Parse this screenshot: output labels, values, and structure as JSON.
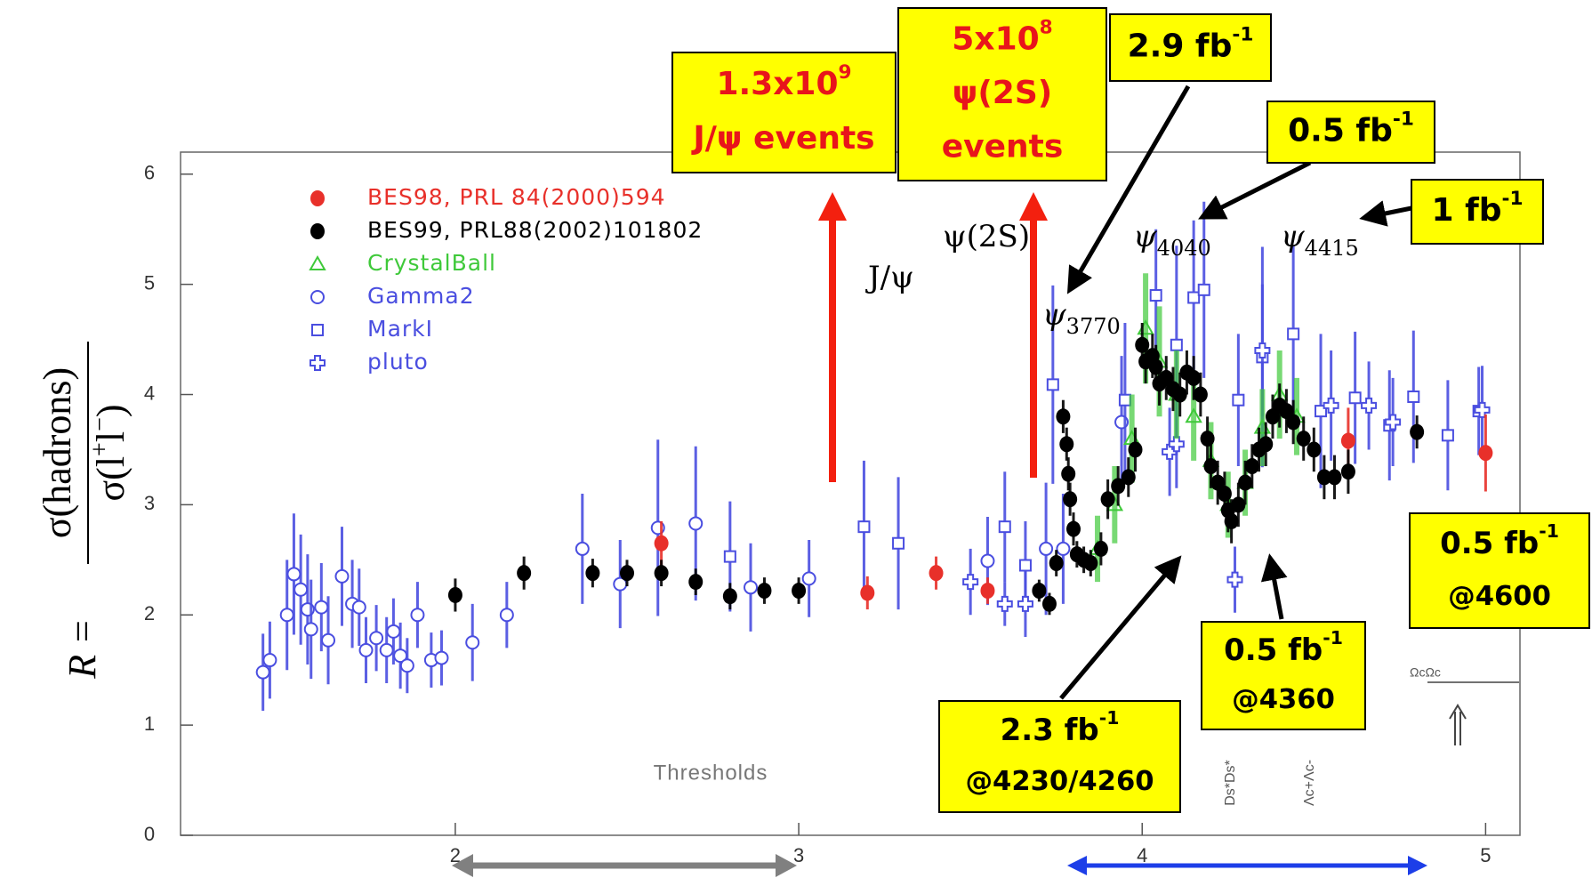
{
  "chart_data": {
    "type": "scatter",
    "xlim": [
      1.2,
      5.1
    ],
    "ylim": [
      0,
      6.2
    ],
    "xticks": [
      2,
      3,
      4,
      5
    ],
    "yticks": [
      0,
      1,
      2,
      3,
      4,
      5,
      6
    ],
    "y_label": {
      "left": "R =",
      "numerator": "σ(hadrons)",
      "denominator": "σ(l",
      "den_sup": "+",
      "den_mid": "l",
      "den_sup2": "−",
      "den_end": ")"
    },
    "series": [
      {
        "name": "BES98, PRL 84(2000)594",
        "color": "#e8302a",
        "marker": "dot",
        "x": [
          2.6,
          3.2,
          3.4,
          3.55,
          4.6,
          5.0
        ],
        "values": [
          2.65,
          2.2,
          2.38,
          2.22,
          3.58,
          3.47
        ],
        "errors": [
          0.2,
          0.15,
          0.15,
          0.12,
          0.3,
          0.35
        ]
      },
      {
        "name": "BES99, PRL88(2002)101802",
        "color": "#000000",
        "marker": "dot",
        "x": [
          2.0,
          2.2,
          2.4,
          2.5,
          2.6,
          2.7,
          2.8,
          2.9,
          3.0,
          3.7,
          3.73,
          3.75,
          3.77,
          3.78,
          3.785,
          3.79,
          3.8,
          3.81,
          3.83,
          3.85,
          3.88,
          3.9,
          3.93,
          3.96,
          3.98,
          4.0,
          4.01,
          4.03,
          4.04,
          4.05,
          4.07,
          4.09,
          4.11,
          4.13,
          4.15,
          4.17,
          4.19,
          4.2,
          4.22,
          4.24,
          4.25,
          4.26,
          4.28,
          4.3,
          4.32,
          4.34,
          4.36,
          4.38,
          4.4,
          4.42,
          4.44,
          4.47,
          4.5,
          4.53,
          4.56,
          4.6,
          4.8
        ],
        "values": [
          2.18,
          2.38,
          2.38,
          2.38,
          2.38,
          2.3,
          2.17,
          2.22,
          2.22,
          2.22,
          2.1,
          2.47,
          3.8,
          3.55,
          3.28,
          3.05,
          2.78,
          2.55,
          2.5,
          2.47,
          2.6,
          3.05,
          3.17,
          3.25,
          3.5,
          4.45,
          4.3,
          4.35,
          4.25,
          4.1,
          4.15,
          4.05,
          4.0,
          4.2,
          4.15,
          4.0,
          3.6,
          3.35,
          3.2,
          3.1,
          2.95,
          2.85,
          3.0,
          3.2,
          3.35,
          3.5,
          3.55,
          3.8,
          3.9,
          3.85,
          3.75,
          3.6,
          3.5,
          3.25,
          3.25,
          3.3,
          3.66
        ],
        "errors": [
          0.15,
          0.15,
          0.13,
          0.12,
          0.12,
          0.12,
          0.12,
          0.12,
          0.12,
          0.1,
          0.1,
          0.12,
          0.15,
          0.15,
          0.15,
          0.15,
          0.15,
          0.12,
          0.12,
          0.12,
          0.15,
          0.18,
          0.18,
          0.18,
          0.2,
          0.2,
          0.2,
          0.2,
          0.2,
          0.2,
          0.2,
          0.2,
          0.2,
          0.2,
          0.2,
          0.2,
          0.2,
          0.2,
          0.2,
          0.2,
          0.2,
          0.2,
          0.2,
          0.2,
          0.2,
          0.2,
          0.2,
          0.2,
          0.2,
          0.2,
          0.2,
          0.2,
          0.2,
          0.2,
          0.2,
          0.2,
          0.15
        ]
      },
      {
        "name": "CrystalBall",
        "color": "#3fc93a",
        "marker": "triangle",
        "x": [
          3.87,
          3.92,
          3.97,
          4.01,
          4.05,
          4.1,
          4.15,
          4.2,
          4.25,
          4.3,
          4.35,
          4.4,
          4.45
        ],
        "values": [
          2.6,
          3.0,
          3.6,
          4.6,
          4.3,
          4.0,
          3.8,
          3.4,
          3.0,
          3.2,
          3.7,
          4.0,
          3.8
        ],
        "errors": [
          0.3,
          0.35,
          0.4,
          0.5,
          0.5,
          0.4,
          0.4,
          0.35,
          0.3,
          0.3,
          0.35,
          0.4,
          0.35
        ]
      },
      {
        "name": "Gamma2",
        "color": "#4a4ee0",
        "marker": "circle",
        "x": [
          1.44,
          1.46,
          1.51,
          1.53,
          1.55,
          1.57,
          1.58,
          1.61,
          1.63,
          1.67,
          1.7,
          1.72,
          1.74,
          1.77,
          1.8,
          1.82,
          1.84,
          1.86,
          1.89,
          1.93,
          1.96,
          2.05,
          2.15,
          2.37,
          2.48,
          2.59,
          2.7,
          2.86,
          3.03,
          3.55,
          3.72,
          3.77,
          3.94
        ],
        "values": [
          1.48,
          1.59,
          2.0,
          2.37,
          2.23,
          2.05,
          1.87,
          2.07,
          1.77,
          2.35,
          2.1,
          2.07,
          1.68,
          1.79,
          1.68,
          1.85,
          1.63,
          1.54,
          2.0,
          1.59,
          1.61,
          1.75,
          2.0,
          2.6,
          2.28,
          2.79,
          2.83,
          2.25,
          2.33,
          2.49,
          2.6,
          2.6,
          3.75
        ],
        "errors": [
          0.35,
          0.35,
          0.5,
          0.55,
          0.5,
          0.5,
          0.45,
          0.4,
          0.4,
          0.45,
          0.4,
          0.35,
          0.3,
          0.3,
          0.3,
          0.3,
          0.3,
          0.25,
          0.3,
          0.25,
          0.25,
          0.35,
          0.3,
          0.5,
          0.4,
          0.8,
          0.7,
          0.4,
          0.35,
          0.4,
          0.6,
          0.5,
          0.6
        ]
      },
      {
        "name": "MarkI",
        "color": "#4a4ee0",
        "marker": "square",
        "x": [
          2.8,
          3.19,
          3.29,
          3.6,
          3.66,
          3.74,
          3.95,
          4.04,
          4.1,
          4.15,
          4.18,
          4.28,
          4.35,
          4.44,
          4.52,
          4.62,
          4.72,
          4.79,
          4.89,
          4.98
        ],
        "values": [
          2.53,
          2.8,
          2.65,
          2.8,
          2.45,
          4.09,
          3.95,
          4.9,
          4.45,
          4.88,
          4.95,
          3.95,
          4.34,
          4.55,
          3.85,
          3.97,
          3.72,
          3.98,
          3.63,
          3.85
        ],
        "errors": [
          0.5,
          0.6,
          0.6,
          0.5,
          0.4,
          0.9,
          0.7,
          0.6,
          0.9,
          0.7,
          0.8,
          0.6,
          1.0,
          0.8,
          0.7,
          0.6,
          0.5,
          0.6,
          0.5,
          0.4
        ]
      },
      {
        "name": "pluto",
        "color": "#4a4ee0",
        "marker": "cross",
        "x": [
          3.5,
          3.6,
          3.66,
          4.08,
          4.1,
          4.27,
          4.35,
          4.55,
          4.66,
          4.73,
          4.99
        ],
        "values": [
          2.3,
          2.1,
          2.1,
          3.48,
          3.55,
          2.32,
          4.4,
          3.9,
          3.9,
          3.75,
          3.86
        ],
        "errors": [
          0.3,
          0.2,
          0.3,
          0.4,
          0.4,
          0.3,
          0.6,
          0.5,
          0.4,
          0.4,
          0.4
        ]
      }
    ],
    "resonances": [
      {
        "text": "J/ψ"
      },
      {
        "text": "ψ(2S)"
      },
      {
        "text": "ψ",
        "sub": "3770"
      },
      {
        "text": "ψ",
        "sub": "4040"
      },
      {
        "text": "ψ",
        "sub": "4415"
      }
    ],
    "thresholds": {
      "title": "Thresholds",
      "labels": [
        "Ds*Ds*",
        "Λc+Λc-",
        "ΩcΩc"
      ]
    },
    "annotations": [
      {
        "lines": [
          {
            "text": "1.3x10",
            "sup": "9"
          },
          {
            "text": "J/ψ events"
          }
        ]
      },
      {
        "lines": [
          {
            "text": "5x10",
            "sup": "8"
          },
          {
            "text": "ψ(2S)"
          },
          {
            "text": "events"
          }
        ]
      },
      {
        "lines": [
          {
            "text": "2.9 fb",
            "sup": "-1"
          }
        ]
      },
      {
        "lines": [
          {
            "text": "0.5 fb",
            "sup": "-1"
          }
        ]
      },
      {
        "lines": [
          {
            "text": "1 fb",
            "sup": "-1"
          }
        ]
      },
      {
        "lines": [
          {
            "text": "0.5 fb",
            "sup": "-1"
          },
          {
            "text": "@4600"
          }
        ]
      },
      {
        "lines": [
          {
            "text": "0.5 fb",
            "sup": "-1"
          },
          {
            "text": "@4360"
          }
        ]
      },
      {
        "lines": [
          {
            "text": "2.3 fb",
            "sup": "-1"
          },
          {
            "text": "@4230/4260"
          }
        ]
      }
    ]
  }
}
